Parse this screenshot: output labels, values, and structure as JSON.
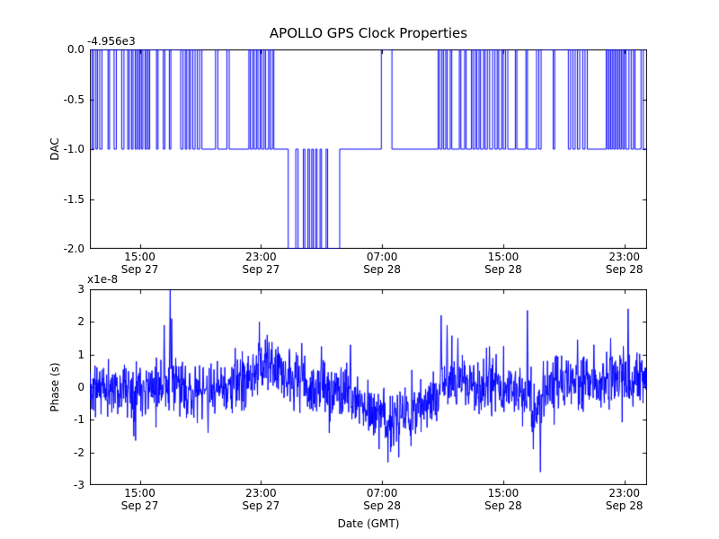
{
  "figure": {
    "background": "#ffffff",
    "line_color": "#0000ff",
    "axis_color": "#000000"
  },
  "chart_data": [
    {
      "type": "line",
      "subtype": "step",
      "title": "APOLLO GPS Clock Properties",
      "ylabel": "DAC",
      "offset_text": "-4.956e3",
      "xlim": [
        -0.3,
        36.5
      ],
      "ylim": [
        -2.0,
        0.0
      ],
      "yticks": [
        0.0,
        -0.5,
        -1.0,
        -1.5,
        -2.0
      ],
      "ytick_labels": [
        "0.0",
        "-0.5",
        "-1.0",
        "-1.5",
        "-2.0"
      ],
      "xticks": [
        3,
        11,
        19,
        27,
        35
      ],
      "xtick_labels": [
        [
          "15:00",
          "Sep 27"
        ],
        [
          "23:00",
          "Sep 27"
        ],
        [
          "07:00",
          "Sep 28"
        ],
        [
          "15:00",
          "Sep 28"
        ],
        [
          "23:00",
          "Sep 28"
        ]
      ],
      "grid": false,
      "step_points": [
        [
          -0.3,
          0
        ],
        [
          -0.15,
          -1
        ],
        [
          -0.05,
          0
        ],
        [
          0.1,
          -1
        ],
        [
          0.2,
          0
        ],
        [
          0.35,
          -1
        ],
        [
          0.5,
          0
        ],
        [
          0.9,
          -1
        ],
        [
          1.0,
          0
        ],
        [
          1.3,
          -1
        ],
        [
          1.45,
          0
        ],
        [
          1.8,
          -1
        ],
        [
          1.95,
          0
        ],
        [
          2.2,
          -1
        ],
        [
          2.3,
          0
        ],
        [
          2.45,
          -1
        ],
        [
          2.55,
          0
        ],
        [
          2.7,
          -1
        ],
        [
          2.8,
          0
        ],
        [
          2.9,
          -1
        ],
        [
          3.0,
          0
        ],
        [
          3.1,
          -1
        ],
        [
          3.2,
          0
        ],
        [
          3.35,
          -1
        ],
        [
          3.45,
          0
        ],
        [
          3.55,
          -1
        ],
        [
          3.65,
          0
        ],
        [
          4.1,
          -1
        ],
        [
          4.2,
          0
        ],
        [
          4.55,
          -1
        ],
        [
          4.65,
          0
        ],
        [
          4.95,
          -1
        ],
        [
          5.05,
          0
        ],
        [
          5.7,
          -1
        ],
        [
          5.85,
          0
        ],
        [
          6.0,
          -1
        ],
        [
          6.1,
          0
        ],
        [
          6.25,
          -1
        ],
        [
          6.35,
          0
        ],
        [
          6.5,
          -1
        ],
        [
          6.65,
          0
        ],
        [
          6.8,
          -1
        ],
        [
          6.95,
          0
        ],
        [
          7.1,
          -1
        ],
        [
          8.0,
          0
        ],
        [
          8.15,
          -1
        ],
        [
          8.75,
          0
        ],
        [
          8.9,
          -1
        ],
        [
          10.2,
          0
        ],
        [
          10.3,
          -1
        ],
        [
          10.45,
          0
        ],
        [
          10.55,
          -1
        ],
        [
          10.7,
          0
        ],
        [
          10.8,
          -1
        ],
        [
          10.95,
          0
        ],
        [
          11.05,
          -1
        ],
        [
          11.2,
          0
        ],
        [
          11.3,
          -1
        ],
        [
          11.5,
          0
        ],
        [
          11.6,
          -1
        ],
        [
          11.75,
          0
        ],
        [
          11.85,
          -1
        ],
        [
          12.8,
          -2
        ],
        [
          13.3,
          -1
        ],
        [
          13.45,
          -2
        ],
        [
          13.8,
          -1
        ],
        [
          13.9,
          -2
        ],
        [
          14.1,
          -1
        ],
        [
          14.2,
          -2
        ],
        [
          14.35,
          -1
        ],
        [
          14.45,
          -2
        ],
        [
          14.6,
          -1
        ],
        [
          14.7,
          -2
        ],
        [
          14.9,
          -1
        ],
        [
          15.0,
          -2
        ],
        [
          15.3,
          -1
        ],
        [
          15.4,
          -2
        ],
        [
          16.2,
          -1
        ],
        [
          18.95,
          0
        ],
        [
          19.65,
          -1
        ],
        [
          22.7,
          0
        ],
        [
          22.8,
          -1
        ],
        [
          22.95,
          0
        ],
        [
          23.05,
          -1
        ],
        [
          23.2,
          0
        ],
        [
          23.3,
          -1
        ],
        [
          23.5,
          0
        ],
        [
          23.6,
          -1
        ],
        [
          24.1,
          0
        ],
        [
          24.2,
          -1
        ],
        [
          24.45,
          0
        ],
        [
          24.55,
          -1
        ],
        [
          24.9,
          0
        ],
        [
          25.0,
          -1
        ],
        [
          25.15,
          0
        ],
        [
          25.25,
          -1
        ],
        [
          25.4,
          0
        ],
        [
          25.5,
          -1
        ],
        [
          25.7,
          0
        ],
        [
          25.8,
          -1
        ],
        [
          25.95,
          0
        ],
        [
          26.1,
          -1
        ],
        [
          26.3,
          0
        ],
        [
          26.45,
          -1
        ],
        [
          26.6,
          0
        ],
        [
          26.7,
          -1
        ],
        [
          26.9,
          0
        ],
        [
          27.0,
          -1
        ],
        [
          27.15,
          0
        ],
        [
          27.3,
          -1
        ],
        [
          27.8,
          0
        ],
        [
          27.9,
          -1
        ],
        [
          28.5,
          0
        ],
        [
          28.6,
          -1
        ],
        [
          29.2,
          0
        ],
        [
          29.35,
          -1
        ],
        [
          29.5,
          0
        ],
        [
          30.3,
          -1
        ],
        [
          30.4,
          0
        ],
        [
          31.3,
          -1
        ],
        [
          31.45,
          0
        ],
        [
          31.6,
          -1
        ],
        [
          31.75,
          0
        ],
        [
          31.9,
          -1
        ],
        [
          32.05,
          0
        ],
        [
          32.25,
          -1
        ],
        [
          32.4,
          0
        ],
        [
          32.55,
          -1
        ],
        [
          33.8,
          0
        ],
        [
          33.9,
          -1
        ],
        [
          34.0,
          0
        ],
        [
          34.1,
          -1
        ],
        [
          34.2,
          0
        ],
        [
          34.3,
          -1
        ],
        [
          34.4,
          0
        ],
        [
          34.5,
          -1
        ],
        [
          34.6,
          0
        ],
        [
          34.7,
          -1
        ],
        [
          34.8,
          0
        ],
        [
          34.9,
          -1
        ],
        [
          35.0,
          0
        ],
        [
          35.1,
          -1
        ],
        [
          35.3,
          0
        ],
        [
          35.45,
          -1
        ],
        [
          35.6,
          0
        ],
        [
          35.7,
          -1
        ],
        [
          36.1,
          0
        ],
        [
          36.25,
          -1
        ]
      ]
    },
    {
      "type": "line",
      "subtype": "noisy",
      "ylabel": "Phase (s)",
      "xlabel": "Date (GMT)",
      "offset_text": "x1e-8",
      "xlim": [
        -0.3,
        36.5
      ],
      "ylim": [
        -3,
        3
      ],
      "yticks": [
        3,
        2,
        1,
        0,
        -1,
        -2,
        -3
      ],
      "ytick_labels": [
        "3",
        "2",
        "1",
        "0",
        "-1",
        "-2",
        "-3"
      ],
      "xticks": [
        3,
        11,
        19,
        27,
        35
      ],
      "xtick_labels": [
        [
          "15:00",
          "Sep 27"
        ],
        [
          "23:00",
          "Sep 27"
        ],
        [
          "07:00",
          "Sep 28"
        ],
        [
          "15:00",
          "Sep 28"
        ],
        [
          "23:00",
          "Sep 28"
        ]
      ],
      "grid": false,
      "units": "1e-8 s",
      "noise": {
        "seed": 11,
        "n_points": 1500,
        "sigma": 0.42,
        "tail_prob": 0.05,
        "tail_mult": 1.7
      },
      "baseline": [
        [
          -0.3,
          0.0
        ],
        [
          1.0,
          -0.05
        ],
        [
          2.0,
          -0.15
        ],
        [
          3.0,
          0.05
        ],
        [
          4.0,
          0.1
        ],
        [
          5.0,
          0.1
        ],
        [
          6.0,
          -0.1
        ],
        [
          7.0,
          -0.2
        ],
        [
          8.0,
          -0.05
        ],
        [
          9.0,
          0.0
        ],
        [
          10.0,
          0.25
        ],
        [
          10.8,
          0.5
        ],
        [
          11.5,
          0.55
        ],
        [
          12.2,
          0.45
        ],
        [
          13.0,
          0.2
        ],
        [
          14.0,
          0.1
        ],
        [
          15.0,
          -0.05
        ],
        [
          16.0,
          -0.1
        ],
        [
          17.0,
          -0.25
        ],
        [
          18.0,
          -0.6
        ],
        [
          18.8,
          -0.9
        ],
        [
          19.5,
          -1.05
        ],
        [
          20.2,
          -0.9
        ],
        [
          21.0,
          -0.65
        ],
        [
          22.0,
          -0.4
        ],
        [
          22.7,
          -0.1
        ],
        [
          23.2,
          0.15
        ],
        [
          23.8,
          0.25
        ],
        [
          24.5,
          0.1
        ],
        [
          25.5,
          0.0
        ],
        [
          26.5,
          0.05
        ],
        [
          27.5,
          -0.15
        ],
        [
          28.3,
          -0.35
        ],
        [
          29.0,
          -0.5
        ],
        [
          29.5,
          -0.45
        ],
        [
          30.0,
          -0.05
        ],
        [
          30.8,
          0.15
        ],
        [
          31.5,
          0.1
        ],
        [
          32.5,
          0.1
        ],
        [
          33.5,
          0.2
        ],
        [
          34.5,
          0.2
        ],
        [
          35.5,
          0.3
        ],
        [
          36.5,
          0.2
        ]
      ],
      "spikes": [
        [
          2.6,
          -1.5
        ],
        [
          4.6,
          1.9
        ],
        [
          5.0,
          3.05
        ],
        [
          5.1,
          2.1
        ],
        [
          7.5,
          -1.4
        ],
        [
          9.3,
          1.2
        ],
        [
          10.9,
          2.0
        ],
        [
          11.4,
          1.6
        ],
        [
          13.7,
          1.35
        ],
        [
          15.0,
          1.25
        ],
        [
          16.9,
          1.3
        ],
        [
          18.8,
          -1.9
        ],
        [
          19.4,
          -2.3
        ],
        [
          20.1,
          -2.15
        ],
        [
          20.9,
          -1.8
        ],
        [
          22.9,
          2.2
        ],
        [
          23.3,
          1.9
        ],
        [
          24.0,
          1.5
        ],
        [
          26.1,
          1.25
        ],
        [
          28.6,
          2.35
        ],
        [
          29.0,
          -1.9
        ],
        [
          29.45,
          -2.6
        ],
        [
          31.9,
          1.45
        ],
        [
          33.0,
          1.3
        ],
        [
          34.1,
          1.5
        ],
        [
          35.25,
          2.4
        ]
      ]
    }
  ]
}
